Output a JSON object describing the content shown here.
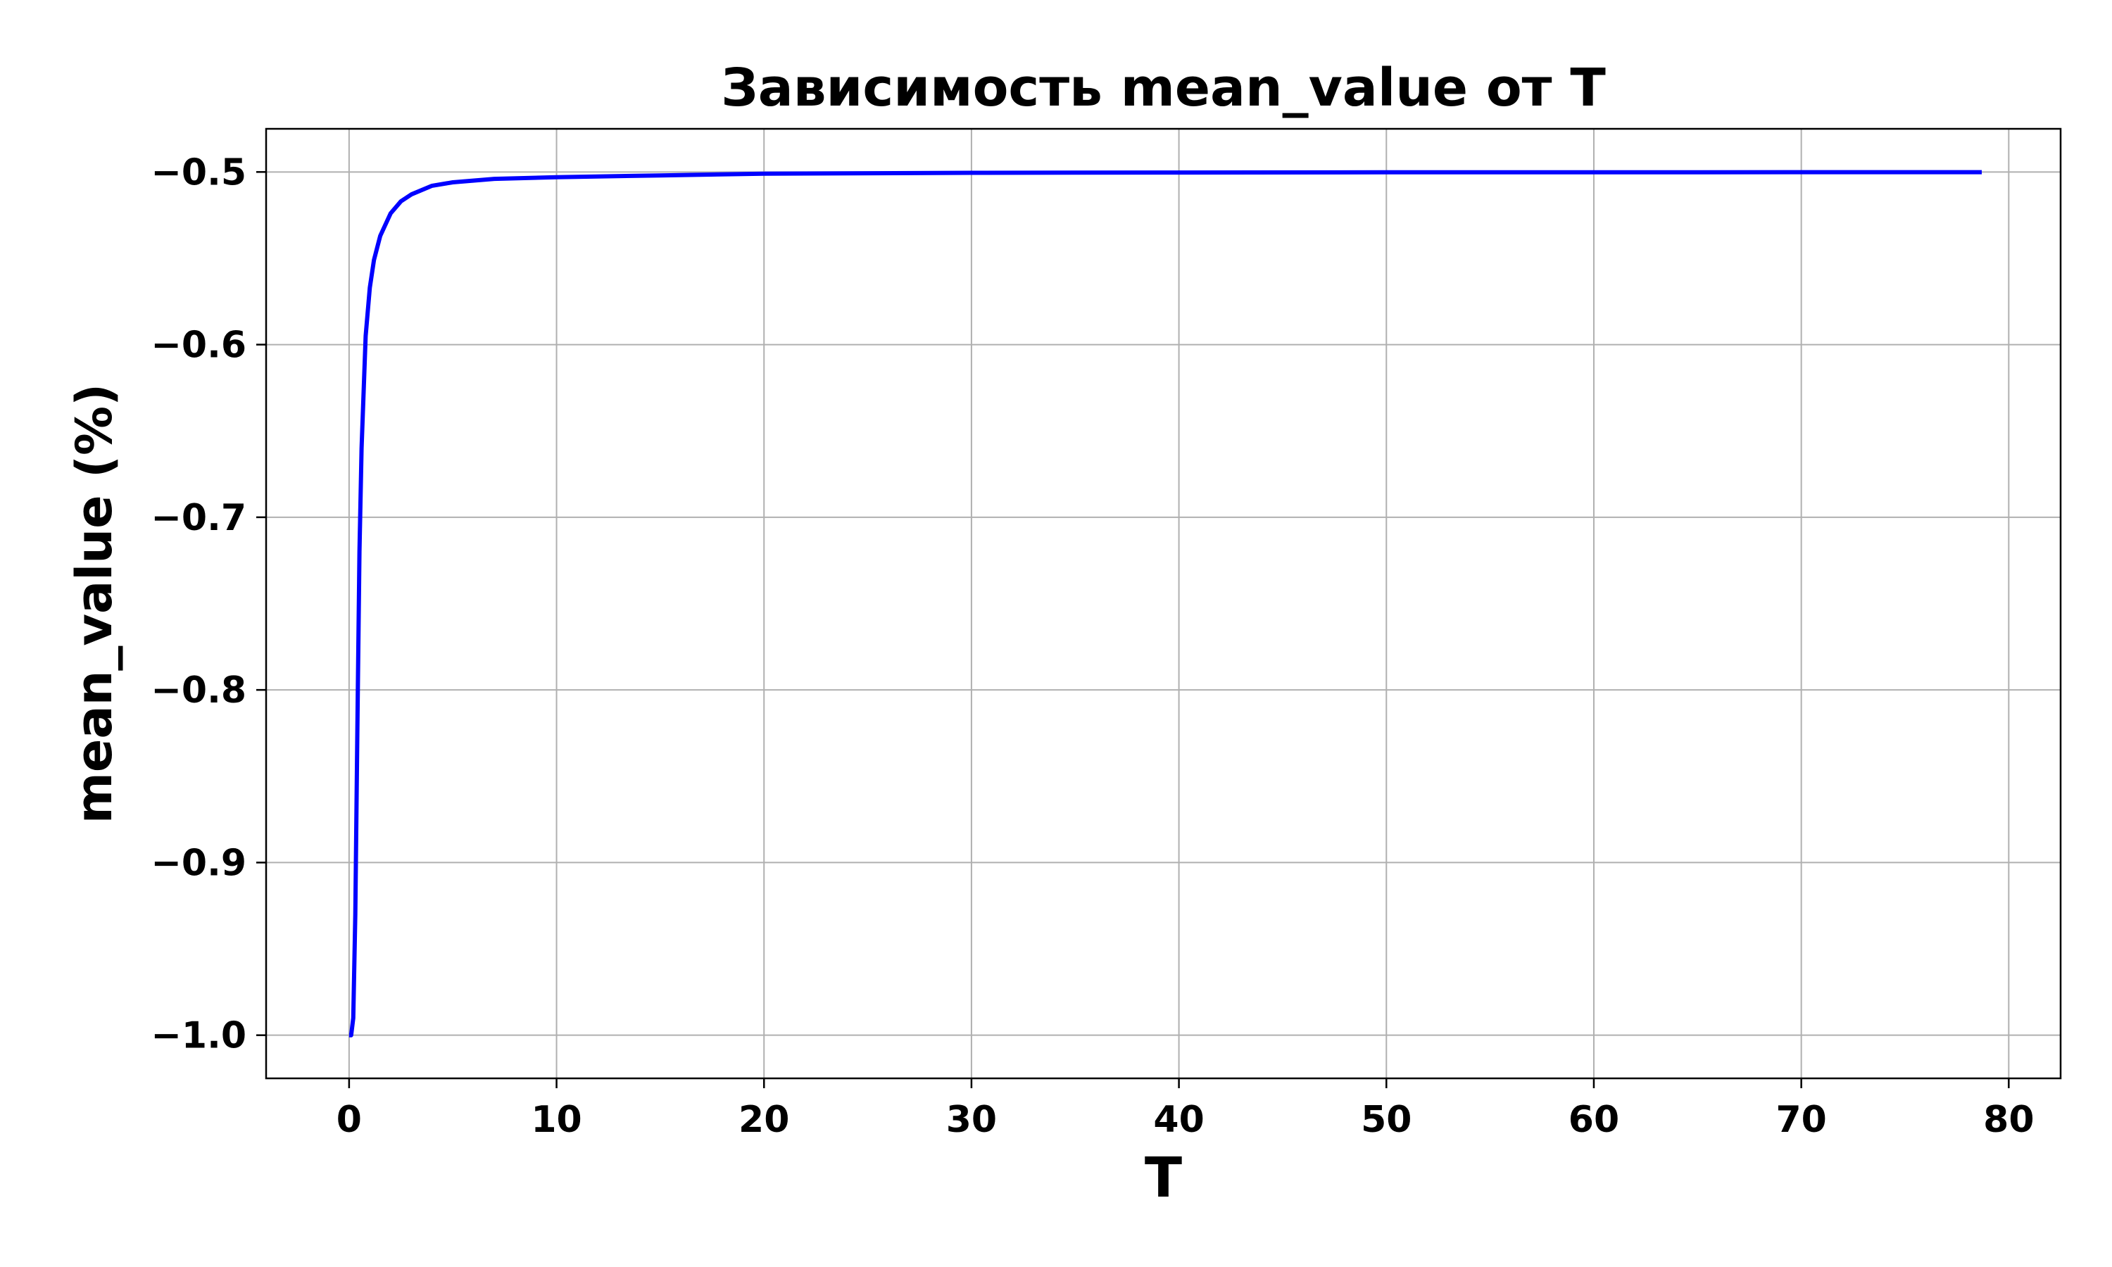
{
  "chart_data": {
    "type": "line",
    "title": "Зависимость mean_value от T",
    "xlabel": "T",
    "ylabel": "mean_value (%)",
    "xlim": [
      -4,
      82.5
    ],
    "ylim": [
      -1.025,
      -0.475
    ],
    "xticks": [
      0,
      10,
      20,
      30,
      40,
      50,
      60,
      70,
      80
    ],
    "xtick_labels": [
      "0",
      "10",
      "20",
      "30",
      "40",
      "50",
      "60",
      "70",
      "80"
    ],
    "yticks": [
      -1.0,
      -0.9,
      -0.8,
      -0.7,
      -0.6,
      -0.5
    ],
    "ytick_labels": [
      "−1.0",
      "−0.9",
      "−0.8",
      "−0.7",
      "−0.6",
      "−0.5"
    ],
    "grid": true,
    "series": [
      {
        "color": "#0000ff",
        "x": [
          0,
          0.1,
          0.2,
          0.3,
          0.4,
          0.5,
          0.6,
          0.8,
          1.0,
          1.2,
          1.5,
          2.0,
          2.5,
          3.0,
          4.0,
          5.0,
          7.0,
          10.0,
          15.0,
          20.0,
          30.0,
          40.0,
          50.0,
          60.0,
          70.0,
          78.7
        ],
        "y": [
          -1.0,
          -1.0,
          -0.99,
          -0.93,
          -0.82,
          -0.72,
          -0.66,
          -0.595,
          -0.567,
          -0.551,
          -0.537,
          -0.524,
          -0.517,
          -0.513,
          -0.508,
          -0.506,
          -0.504,
          -0.503,
          -0.502,
          -0.501,
          -0.5005,
          -0.5003,
          -0.5002,
          -0.5002,
          -0.5001,
          -0.5001
        ]
      }
    ]
  }
}
